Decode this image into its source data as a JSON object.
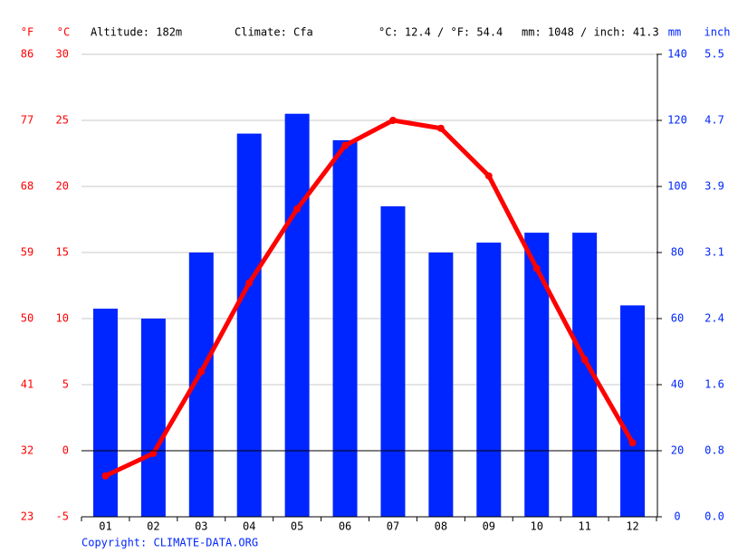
{
  "chart_data": {
    "type": "combo",
    "left_units": [
      "°F",
      "°C"
    ],
    "right_units": [
      "mm",
      "inch"
    ],
    "info": [
      "Altitude: 182m",
      "Climate: Cfa",
      "°C: 12.4 / °F: 54.4",
      "mm: 1048 / inch: 41.3"
    ],
    "copyright": "Copyright: CLIMATE-DATA.ORG",
    "categories": [
      "01",
      "02",
      "03",
      "04",
      "05",
      "06",
      "07",
      "08",
      "09",
      "10",
      "11",
      "12"
    ],
    "series": [
      {
        "type": "bar",
        "axis": "y2",
        "color": "#0026ff",
        "values": [
          63,
          60,
          80,
          116,
          122,
          114,
          94,
          80,
          83,
          86,
          86,
          64
        ]
      },
      {
        "type": "line",
        "axis": "y",
        "color": "#ff0000",
        "values": [
          -1.9,
          -0.2,
          6.0,
          12.7,
          18.3,
          23.1,
          25.0,
          24.4,
          20.8,
          13.8,
          6.9,
          0.6
        ]
      }
    ],
    "ylim": [
      -5,
      30
    ],
    "yticks": [
      -5,
      0,
      5,
      10,
      15,
      20,
      25,
      30
    ],
    "yticks_f": [
      {
        "value": -5,
        "label": "23"
      },
      {
        "value": 0,
        "label": "32"
      },
      {
        "value": 5,
        "label": "41"
      },
      {
        "value": 10,
        "label": "50"
      },
      {
        "value": 15,
        "label": "59"
      },
      {
        "value": 20,
        "label": "68"
      },
      {
        "value": 25,
        "label": "77"
      },
      {
        "value": 30,
        "label": "86"
      }
    ],
    "y2lim": [
      0,
      140
    ],
    "y2ticks": [
      0,
      20,
      40,
      60,
      80,
      100,
      120,
      140
    ],
    "y2ticks_inch": [
      {
        "value": 0,
        "label": "0.0"
      },
      {
        "value": 20,
        "label": "0.8"
      },
      {
        "value": 40,
        "label": "1.6"
      },
      {
        "value": 60,
        "label": "2.4"
      },
      {
        "value": 80,
        "label": "3.1"
      },
      {
        "value": 100,
        "label": "3.9"
      },
      {
        "value": 120,
        "label": "4.7"
      },
      {
        "value": 140,
        "label": "5.5"
      }
    ],
    "grid": true
  }
}
